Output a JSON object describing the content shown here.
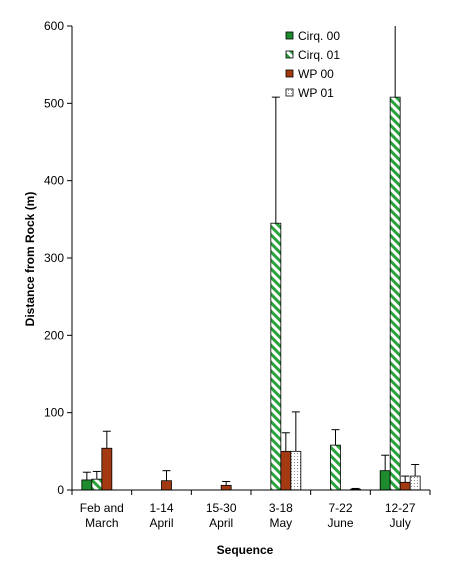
{
  "chart_data": {
    "type": "bar",
    "title": "",
    "xlabel": "Sequence",
    "ylabel": "Distance from Rock (m)",
    "ylim": [
      0,
      600
    ],
    "yticks": [
      "0",
      "100",
      "200",
      "300",
      "400",
      "500",
      "600"
    ],
    "grid": false,
    "legend_position": "top-right",
    "categories": [
      [
        "Feb and",
        "March"
      ],
      [
        "1-14",
        "April"
      ],
      [
        "15-30",
        "April"
      ],
      [
        "3-18",
        "May"
      ],
      [
        "7-22",
        "June"
      ],
      [
        "12-27",
        "July"
      ]
    ],
    "series": [
      {
        "name": "Cirq. 00",
        "style": "solid",
        "color": "#1e8c2e",
        "values": [
          13,
          0,
          0,
          0,
          0,
          25
        ],
        "errors": [
          10,
          0,
          0,
          0,
          0,
          20
        ]
      },
      {
        "name": "Cirq. 01",
        "style": "hatched",
        "color": "#2aa33c",
        "values": [
          14,
          0,
          0,
          345,
          58,
          508
        ],
        "errors": [
          10,
          0,
          0,
          163,
          20,
          305
        ]
      },
      {
        "name": "WP 00",
        "style": "solid",
        "color": "#a33a12",
        "values": [
          54,
          12,
          6,
          50,
          0,
          10
        ],
        "errors": [
          22,
          13,
          5,
          24,
          0,
          8
        ]
      },
      {
        "name": "WP 01",
        "style": "dotted",
        "color": "#ffffff",
        "values": [
          0,
          0,
          0,
          50,
          1,
          18
        ],
        "errors": [
          0,
          0,
          0,
          51,
          1,
          15
        ]
      }
    ]
  }
}
